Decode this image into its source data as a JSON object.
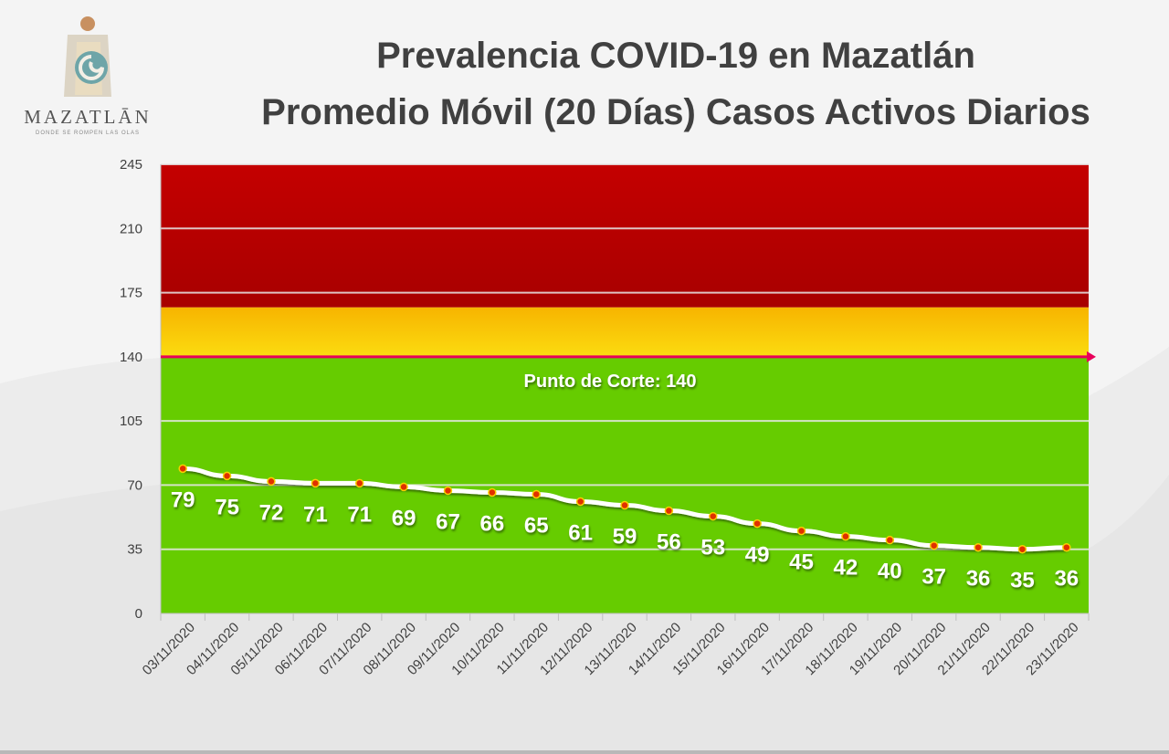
{
  "header": {
    "title_line1": "Prevalencia COVID-19 en Mazatlán",
    "title_line2": "Promedio Móvil (20 Días) Casos Activos Diarios"
  },
  "logo": {
    "wordmark": "MAZATLĀN",
    "tagline": "DONDE SE ROMPEN LAS OLAS",
    "icon": "mazatlan-logo-icon"
  },
  "colors": {
    "red_zone": "#b80000",
    "yellow_zone": "#f5c200",
    "green_zone": "#66cc00",
    "cutoff_line": "#e8005a",
    "series_line": "#ffffff",
    "marker": "#e03000"
  },
  "chart_data": {
    "type": "line",
    "title": "Prevalencia COVID-19 en Mazatlán\nPromedio Móvil (20 Días) Casos Activos Diarios",
    "xlabel": "",
    "ylabel": "",
    "ylim": [
      0,
      245
    ],
    "yticks": [
      "0",
      "35",
      "70",
      "105",
      "140",
      "175",
      "210",
      "245"
    ],
    "grid": true,
    "categories": [
      "03/11/2020",
      "04/11/2020",
      "05/11/2020",
      "06/11/2020",
      "07/11/2020",
      "08/11/2020",
      "09/11/2020",
      "10/11/2020",
      "11/11/2020",
      "12/11/2020",
      "13/11/2020",
      "14/11/2020",
      "15/11/2020",
      "16/11/2020",
      "17/11/2020",
      "18/11/2020",
      "19/11/2020",
      "20/11/2020",
      "21/11/2020",
      "22/11/2020",
      "23/11/2020"
    ],
    "values": [
      79,
      75,
      72,
      71,
      71,
      69,
      67,
      66,
      65,
      61,
      59,
      56,
      53,
      49,
      45,
      42,
      40,
      37,
      36,
      35,
      36
    ],
    "bands": [
      {
        "from": 0,
        "to": 140,
        "zone": "green"
      },
      {
        "from": 140,
        "to": 167,
        "zone": "yellow"
      },
      {
        "from": 167,
        "to": 245,
        "zone": "red"
      }
    ],
    "cutoff": {
      "value": 140,
      "label": "Punto de Corte: 140"
    }
  }
}
